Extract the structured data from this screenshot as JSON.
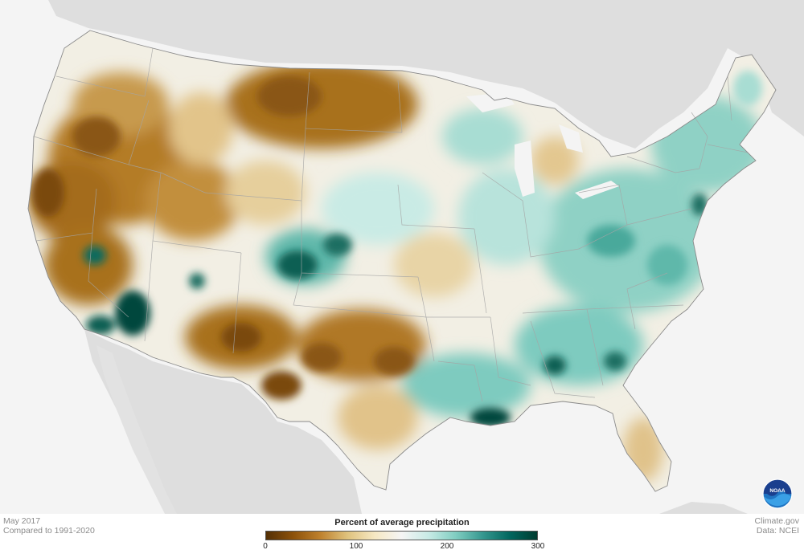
{
  "map": {
    "region": "Contiguous United States",
    "variable": "Percent of average precipitation",
    "period": "May 2017",
    "baseline": "Compared to 1991-2020",
    "colors": {
      "background": "#f4f4f4",
      "neighbors": "#dedede",
      "water": "#ffffff",
      "dry_max": "#7a4a0e",
      "dry": "#b8822e",
      "normal": "#f5f1e6",
      "wet": "#6cc2b4",
      "wet_max": "#00473d",
      "borders": "#9a9a9a"
    }
  },
  "legend": {
    "title": "Percent of average precipitation",
    "ticks": [
      {
        "label": "0",
        "value": 0
      },
      {
        "label": "100",
        "value": 100
      },
      {
        "label": "200",
        "value": 200
      },
      {
        "label": "300",
        "value": 300
      }
    ],
    "range": [
      0,
      300
    ],
    "stops": [
      "#543005",
      "#8c510a",
      "#bf812d",
      "#dfc27d",
      "#f6e8c3",
      "#f5f5f5",
      "#c7eae5",
      "#80cdc1",
      "#35978f",
      "#01665e",
      "#003c30"
    ]
  },
  "footer": {
    "date": "May 2017",
    "compare": "Compared to 1991-2020",
    "site": "Climate.gov",
    "source": "Data: NCEI"
  },
  "logo": {
    "icon": "noaa-logo",
    "text": "NOAA"
  }
}
